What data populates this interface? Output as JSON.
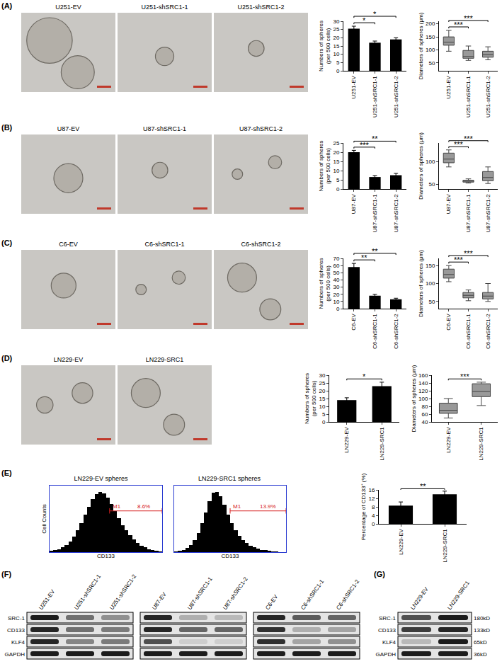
{
  "chart_data": [
    {
      "type": "bar",
      "categories": [
        "U251-EV",
        "U251-shSRC1-1",
        "U251-shSRC1-2"
      ],
      "values": [
        25.5,
        17,
        19
      ],
      "errors": [
        1.5,
        1,
        1
      ],
      "color": "#000000",
      "y_label": "Numbers of spheres\n(per 500 cells)",
      "ylim": [
        0,
        30
      ],
      "yticks": [
        0,
        5,
        10,
        15,
        20,
        25,
        30
      ],
      "significance": [
        {
          "pair": [
            0,
            1
          ],
          "text": "*"
        },
        {
          "pair": [
            0,
            2
          ],
          "text": "*"
        }
      ]
    },
    {
      "type": "box",
      "categories": [
        "U251-EV",
        "U251-shSRC1-1",
        "U251-shSRC1-2"
      ],
      "q1": [
        118,
        68,
        72
      ],
      "median": [
        130,
        75,
        82
      ],
      "q3": [
        150,
        98,
        95
      ],
      "lower": [
        95,
        60,
        62
      ],
      "upper": [
        175,
        115,
        112
      ],
      "color": "#999999",
      "y_label": "Diameters of spheres (μm)",
      "ylim": [
        20,
        210
      ],
      "yticks": [
        50,
        100,
        150,
        200
      ],
      "significance": [
        {
          "pair": [
            0,
            1
          ],
          "text": "***"
        },
        {
          "pair": [
            0,
            2
          ],
          "text": "***"
        }
      ]
    },
    {
      "type": "bar",
      "categories": [
        "U87-EV",
        "U87-shSRC1-1",
        "U87-shSRC1-2"
      ],
      "values": [
        20,
        6.5,
        7.5
      ],
      "errors": [
        1,
        0.8,
        1
      ],
      "color": "#000000",
      "y_label": "Numbers of spheres\n(per 500 cells)",
      "ylim": [
        0,
        25
      ],
      "yticks": [
        0,
        5,
        10,
        15,
        20,
        25
      ],
      "significance": [
        {
          "pair": [
            0,
            1
          ],
          "text": "***"
        },
        {
          "pair": [
            0,
            2
          ],
          "text": "**"
        }
      ]
    },
    {
      "type": "box",
      "categories": [
        "U87-EV",
        "U87-shSRC1-1",
        "U87-shSRC1-2"
      ],
      "q1": [
        97,
        55,
        58
      ],
      "median": [
        105,
        57,
        65
      ],
      "q3": [
        118,
        59,
        78
      ],
      "lower": [
        88,
        53,
        52
      ],
      "upper": [
        125,
        62,
        88
      ],
      "color": "#999999",
      "y_label": "Diameters of spheres (μm)",
      "ylim": [
        40,
        140
      ],
      "yticks": [
        50,
        100
      ],
      "significance": [
        {
          "pair": [
            0,
            1
          ],
          "text": "***"
        },
        {
          "pair": [
            0,
            2
          ],
          "text": "***"
        }
      ]
    },
    {
      "type": "bar",
      "categories": [
        "C6-EV",
        "C6-shSRC1-1",
        "C6-shSRC1-2"
      ],
      "values": [
        58,
        18,
        13
      ],
      "errors": [
        5,
        2,
        1.5
      ],
      "color": "#000000",
      "y_label": "Numbers of spheres\n(per 500 cells)",
      "ylim": [
        0,
        70
      ],
      "yticks": [
        0,
        10,
        20,
        30,
        40,
        50,
        60,
        70
      ],
      "significance": [
        {
          "pair": [
            0,
            1
          ],
          "text": "**"
        },
        {
          "pair": [
            0,
            2
          ],
          "text": "**"
        }
      ]
    },
    {
      "type": "box",
      "categories": [
        "C6-EV",
        "C6-shSRC1-1",
        "C6-shSRC1-2"
      ],
      "q1": [
        115,
        60,
        57
      ],
      "median": [
        125,
        67,
        65
      ],
      "q3": [
        140,
        75,
        75
      ],
      "lower": [
        105,
        52,
        50
      ],
      "upper": [
        150,
        82,
        100
      ],
      "color": "#999999",
      "y_label": "Diameters of spheres (μm)",
      "ylim": [
        30,
        170
      ],
      "yticks": [
        50,
        100,
        150
      ],
      "significance": [
        {
          "pair": [
            0,
            1
          ],
          "text": "***"
        },
        {
          "pair": [
            0,
            2
          ],
          "text": "***"
        }
      ]
    },
    {
      "type": "bar",
      "categories": [
        "LN229-EV",
        "LN229-SRC1"
      ],
      "values": [
        14,
        23
      ],
      "errors": [
        1.5,
        2.5
      ],
      "color": "#000000",
      "y_label": "Numbers of spheres\n(per 500 cells)",
      "ylim": [
        0,
        30
      ],
      "yticks": [
        0,
        5,
        10,
        15,
        20,
        25,
        30
      ],
      "significance": [
        {
          "pair": [
            0,
            1
          ],
          "text": "*"
        }
      ]
    },
    {
      "type": "box",
      "categories": [
        "LN229-EV",
        "LN229-SRC1"
      ],
      "q1": [
        62,
        105
      ],
      "median": [
        70,
        118
      ],
      "q3": [
        88,
        138
      ],
      "lower": [
        50,
        82
      ],
      "upper": [
        100,
        142
      ],
      "color": "#999999",
      "y_label": "Diameters of spheres (μm)",
      "ylim": [
        40,
        160
      ],
      "yticks": [
        40,
        60,
        80,
        100,
        120,
        140,
        160
      ],
      "significance": [
        {
          "pair": [
            0,
            1
          ],
          "text": "***"
        }
      ]
    },
    {
      "type": "histogram",
      "title": "LN229-EV spheres",
      "x_label": "CD133",
      "y_label": "Cell Counts",
      "bins": [
        0,
        1,
        2,
        3,
        4,
        5,
        6,
        7,
        8,
        9,
        10,
        11,
        12,
        13,
        14,
        15,
        16,
        17,
        18,
        19,
        20,
        21,
        22,
        23,
        24,
        25,
        26,
        27,
        28,
        29,
        30
      ],
      "counts": [
        2,
        3,
        5,
        8,
        12,
        18,
        26,
        36,
        48,
        62,
        75,
        88,
        96,
        100,
        97,
        90,
        80,
        68,
        56,
        45,
        36,
        28,
        21,
        15,
        11,
        8,
        5,
        3,
        2,
        1
      ],
      "color": "#000000",
      "xlim": [
        0,
        30
      ],
      "ylim": [
        0,
        110
      ],
      "tick_labels": false,
      "gate": {
        "start": 16,
        "end": 30,
        "label": "M1",
        "percent_label": "8.6%"
      }
    },
    {
      "type": "histogram",
      "title": "LN229-SRC1 spheres",
      "x_label": "CD133",
      "bins": [
        0,
        1,
        2,
        3,
        4,
        5,
        6,
        7,
        8,
        9,
        10,
        11,
        12,
        13,
        14,
        15,
        16,
        17,
        18,
        19,
        20,
        21,
        22,
        23,
        24,
        25,
        26,
        27,
        28,
        29,
        30
      ],
      "counts": [
        1,
        2,
        4,
        7,
        12,
        20,
        32,
        48,
        66,
        84,
        98,
        100,
        92,
        78,
        62,
        48,
        36,
        27,
        20,
        15,
        11,
        8,
        6,
        4,
        3,
        2,
        1,
        1,
        0,
        0
      ],
      "color": "#000000",
      "xlim": [
        0,
        30
      ],
      "ylim": [
        0,
        110
      ],
      "tick_labels": false,
      "gate": {
        "start": 15,
        "end": 30,
        "label": "M1",
        "percent_label": "13.9%"
      }
    },
    {
      "type": "bar",
      "categories": [
        "LN229-EV",
        "LN229-SRC1"
      ],
      "values": [
        8.6,
        13.9
      ],
      "errors": [
        1.7,
        1.5
      ],
      "color": "#000000",
      "y_label": "Percentage of CD133⁺ (%)",
      "ylim": [
        0,
        16
      ],
      "yticks": [
        0,
        4,
        8,
        12,
        16
      ],
      "significance": [
        {
          "pair": [
            0,
            1
          ],
          "text": "**"
        }
      ]
    }
  ],
  "panels": [
    {
      "label": "(A)",
      "images": [
        "U251-EV",
        "U251-shSRC1-1",
        "U251-shSRC1-2"
      ]
    },
    {
      "label": "(B)",
      "images": [
        "U87-EV",
        "U87-shSRC1-1",
        "U87-shSRC1-2"
      ]
    },
    {
      "label": "(C)",
      "images": [
        "C6-EV",
        "C6-shSRC1-1",
        "C6-shSRC1-2"
      ]
    },
    {
      "label": "(D)",
      "images": [
        "LN229-EV",
        "LN229-SRC1"
      ]
    },
    {
      "label": "(E)"
    },
    {
      "label": "(F)",
      "row_labels": [
        "SRC-1",
        "CD133",
        "KLF4",
        "GAPDH"
      ],
      "blots": [
        {
          "lanes": [
            "U251-EV",
            "U251-shSRC1-1",
            "U251-shSRC1-2"
          ],
          "bands": [
            [
              0.95,
              0.55,
              0.4
            ],
            [
              0.9,
              0.55,
              0.5
            ],
            [
              0.9,
              0.45,
              0.5
            ],
            [
              0.95,
              0.95,
              0.95
            ]
          ]
        },
        {
          "lanes": [
            "U87-EV",
            "U87-shSRC1-1",
            "U87-shSRC1-2"
          ],
          "bands": [
            [
              0.9,
              0.25,
              0.2
            ],
            [
              0.9,
              0.6,
              0.6
            ],
            [
              0.7,
              0.1,
              0.1
            ],
            [
              0.95,
              0.95,
              0.95
            ]
          ]
        },
        {
          "lanes": [
            "C6-EV",
            "C6-shSRC1-1",
            "C6-shSRC1-2"
          ],
          "bands": [
            [
              0.9,
              0.65,
              0.6
            ],
            [
              0.85,
              0.25,
              0.3
            ],
            [
              0.85,
              0.3,
              0.4
            ],
            [
              0.95,
              0.95,
              0.95
            ]
          ]
        }
      ]
    },
    {
      "label": "(G)",
      "row_labels": [
        "SRC-1",
        "CD133",
        "KLF4",
        "GAPDH"
      ],
      "sizes": [
        "180kD",
        "133kD",
        "65kD",
        "36kD"
      ],
      "blots": [
        {
          "lanes": [
            "LN229-EV",
            "LN229-SRC1"
          ],
          "bands": [
            [
              0.7,
              0.95
            ],
            [
              0.8,
              0.9
            ],
            [
              0.2,
              0.95
            ],
            [
              0.95,
              0.95
            ]
          ]
        }
      ]
    }
  ]
}
